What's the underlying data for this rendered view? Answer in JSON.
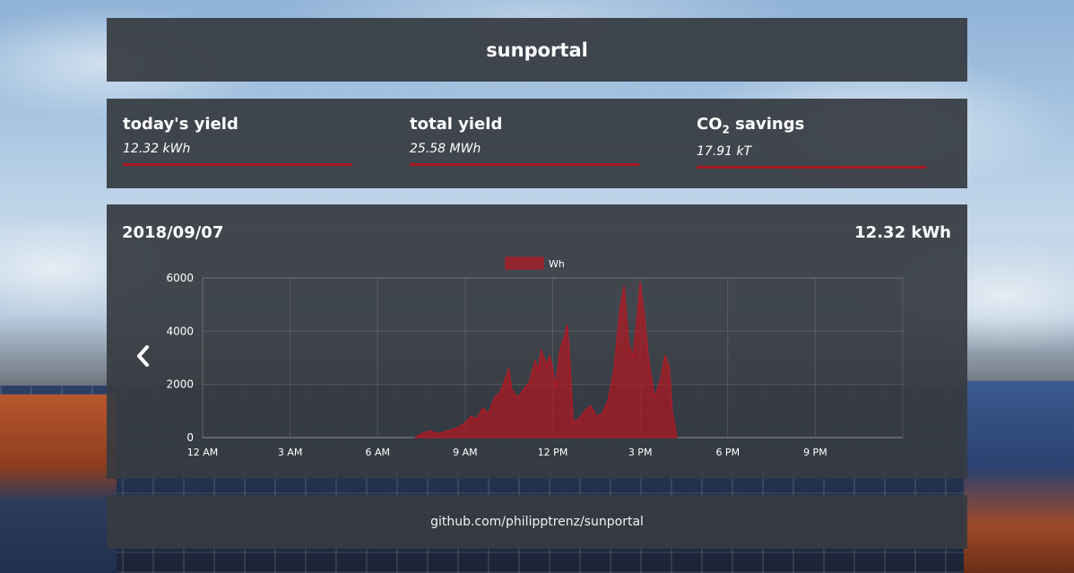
{
  "app": {
    "title": "sunportal"
  },
  "stats": [
    {
      "title_main": "today's yield",
      "title_sub": "",
      "title_tail": "",
      "value": "12.32 kWh"
    },
    {
      "title_main": "total yield",
      "title_sub": "",
      "title_tail": "",
      "value": "25.58 MWh"
    },
    {
      "title_main": "CO",
      "title_sub": "2",
      "title_tail": " savings",
      "value": "17.91 kT"
    }
  ],
  "chart_panel": {
    "date": "2018/09/07",
    "total": "12.32 kWh",
    "prev_icon": "chevron-left-icon"
  },
  "colors": {
    "accent": "#a81822",
    "fill": "rgba(170,25,35,0.75)",
    "panel": "#373b42"
  },
  "chart_data": {
    "type": "area",
    "legend": [
      "Wh"
    ],
    "legend_position": "top-center",
    "grid": true,
    "xlim": [
      0,
      24
    ],
    "ylim": [
      0,
      6000
    ],
    "yticks": [
      "0",
      "2000",
      "4000",
      "6000"
    ],
    "yticks_values": [
      0,
      2000,
      4000,
      6000
    ],
    "xticks": [
      "12 AM",
      "3 AM",
      "6 AM",
      "9 AM",
      "12 PM",
      "3 PM",
      "6 PM",
      "9 PM"
    ],
    "xticks_values": [
      0,
      3,
      6,
      9,
      12,
      15,
      18,
      21
    ],
    "series": [
      {
        "name": "Wh",
        "points": [
          [
            7.3,
            0
          ],
          [
            7.5,
            150
          ],
          [
            7.8,
            250
          ],
          [
            8.1,
            150
          ],
          [
            8.4,
            250
          ],
          [
            8.7,
            350
          ],
          [
            9.0,
            550
          ],
          [
            9.2,
            800
          ],
          [
            9.4,
            700
          ],
          [
            9.6,
            1100
          ],
          [
            9.8,
            900
          ],
          [
            10.0,
            1500
          ],
          [
            10.2,
            1700
          ],
          [
            10.4,
            2300
          ],
          [
            10.5,
            2600
          ],
          [
            10.6,
            1800
          ],
          [
            10.8,
            1500
          ],
          [
            11.0,
            1800
          ],
          [
            11.2,
            2100
          ],
          [
            11.4,
            2900
          ],
          [
            11.5,
            2500
          ],
          [
            11.6,
            3300
          ],
          [
            11.8,
            2700
          ],
          [
            11.9,
            3100
          ],
          [
            12.0,
            2600
          ],
          [
            12.1,
            1900
          ],
          [
            12.25,
            3300
          ],
          [
            12.4,
            3800
          ],
          [
            12.5,
            4250
          ],
          [
            12.6,
            2700
          ],
          [
            12.7,
            600
          ],
          [
            12.9,
            700
          ],
          [
            13.1,
            1000
          ],
          [
            13.3,
            1200
          ],
          [
            13.5,
            800
          ],
          [
            13.7,
            900
          ],
          [
            13.9,
            1400
          ],
          [
            14.1,
            2500
          ],
          [
            14.3,
            4800
          ],
          [
            14.45,
            5700
          ],
          [
            14.6,
            3600
          ],
          [
            14.75,
            3000
          ],
          [
            14.9,
            4600
          ],
          [
            15.0,
            5850
          ],
          [
            15.15,
            4500
          ],
          [
            15.3,
            2800
          ],
          [
            15.5,
            1500
          ],
          [
            15.7,
            2200
          ],
          [
            15.85,
            3100
          ],
          [
            16.0,
            2600
          ],
          [
            16.1,
            1000
          ],
          [
            16.25,
            0
          ]
        ]
      }
    ]
  },
  "footer": {
    "link": "github.com/philipptrenz/sunportal"
  }
}
